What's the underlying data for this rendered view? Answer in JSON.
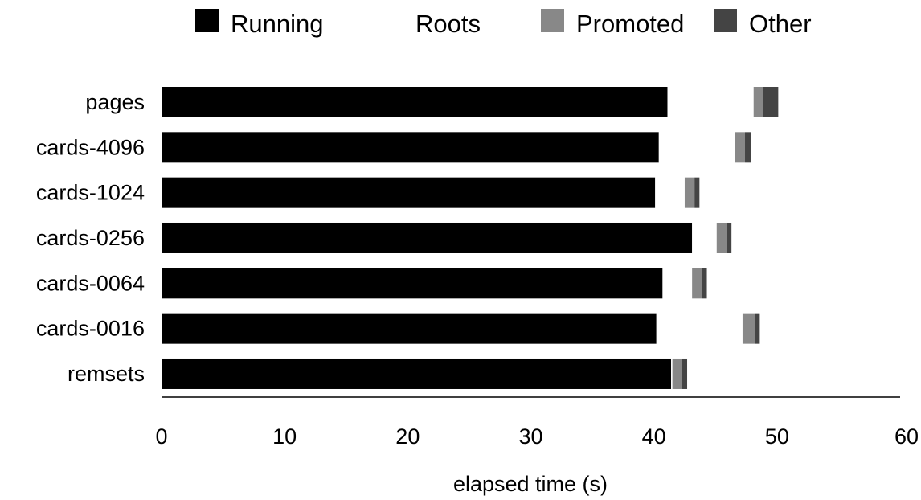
{
  "chart_data": {
    "type": "bar",
    "orientation": "horizontal",
    "stacked": true,
    "categories": [
      "pages",
      "cards-4096",
      "cards-1024",
      "cards-0256",
      "cards-0064",
      "cards-0016",
      "remsets"
    ],
    "series": [
      {
        "name": "Running",
        "color": "#000000",
        "values": [
          41.1,
          40.4,
          40.1,
          43.1,
          40.7,
          40.2,
          41.4
        ]
      },
      {
        "name": "Roots",
        "color": "#ffffff",
        "values": [
          7.0,
          6.2,
          2.4,
          2.0,
          2.4,
          7.0,
          0.1
        ]
      },
      {
        "name": "Promoted",
        "color": "#888888",
        "values": [
          0.8,
          0.8,
          0.8,
          0.8,
          0.8,
          1.0,
          0.8
        ]
      },
      {
        "name": "Other",
        "color": "#444444",
        "values": [
          1.2,
          0.5,
          0.4,
          0.4,
          0.4,
          0.4,
          0.4
        ]
      }
    ],
    "xlabel": "elapsed time (s)",
    "ylabel": "",
    "xlim": [
      0,
      60
    ],
    "xticks": [
      "0",
      "10",
      "20",
      "30",
      "40",
      "50",
      "60"
    ],
    "grid": false,
    "legend_position": "top"
  }
}
